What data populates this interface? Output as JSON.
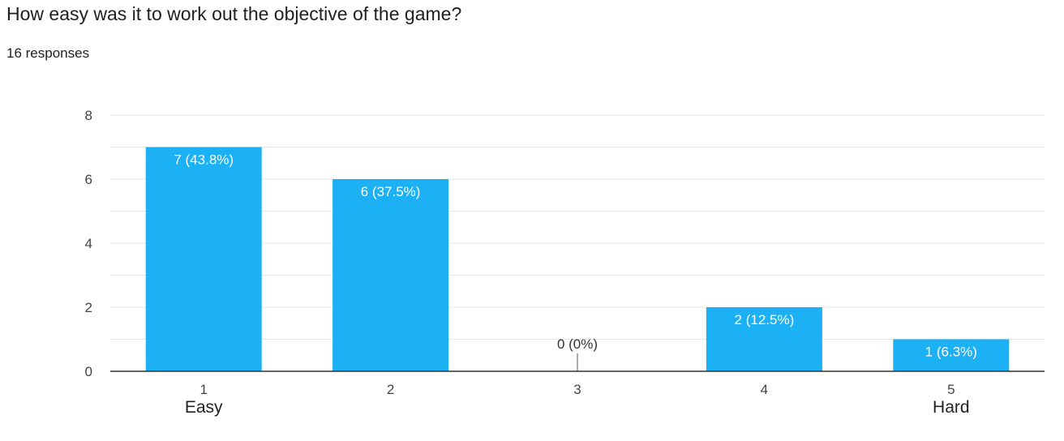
{
  "question": {
    "title": "How easy was it to work out the objective of the game?",
    "response_count": "16 responses"
  },
  "chart_data": {
    "type": "bar",
    "categories": [
      "1",
      "2",
      "3",
      "4",
      "5"
    ],
    "category_sublabels": [
      "Easy",
      "",
      "",
      "",
      "Hard"
    ],
    "values": [
      7,
      6,
      0,
      2,
      1
    ],
    "data_labels": [
      "7 (43.8%)",
      "6 (37.5%)",
      "0 (0%)",
      "2 (12.5%)",
      "1 (6.3%)"
    ],
    "y_ticks": [
      0,
      2,
      4,
      6,
      8
    ],
    "ylim": [
      0,
      8
    ],
    "title": "",
    "xlabel": "",
    "ylabel": "",
    "grid": true,
    "bar_color": "#1bb1f4",
    "grid_color": "#e6e6e6",
    "label_inside_color": "#ffffff",
    "label_outside_color": "#333333"
  }
}
